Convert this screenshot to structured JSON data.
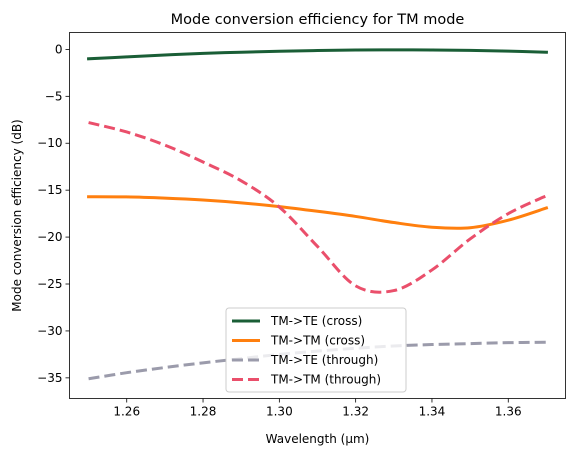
{
  "chart_data": {
    "type": "line",
    "title": "Mode conversion efficiency for TM mode",
    "xlabel": "Wavelength (μm)",
    "ylabel": "Mode conversion efficiency (dB)",
    "xlim": [
      1.245,
      1.375
    ],
    "ylim": [
      -37.2,
      1.8
    ],
    "xticks": [
      1.26,
      1.28,
      1.3,
      1.32,
      1.34,
      1.36
    ],
    "xtick_labels": [
      "1.26",
      "1.28",
      "1.30",
      "1.32",
      "1.34",
      "1.36"
    ],
    "yticks": [
      0,
      -5,
      -10,
      -15,
      -20,
      -25,
      -30,
      -35
    ],
    "ytick_labels": [
      "0",
      "−5",
      "−10",
      "−15",
      "−20",
      "−25",
      "−30",
      "−35"
    ],
    "grid": false,
    "legend_position": "bottom-center",
    "series": [
      {
        "name": "TM->TE (cross)",
        "color": "#1a5e36",
        "dash": "solid",
        "x": [
          1.25,
          1.26,
          1.27,
          1.28,
          1.29,
          1.3,
          1.31,
          1.32,
          1.33,
          1.34,
          1.35,
          1.36,
          1.37
        ],
        "y": [
          -1.0,
          -0.8,
          -0.6,
          -0.42,
          -0.3,
          -0.2,
          -0.12,
          -0.07,
          -0.05,
          -0.06,
          -0.1,
          -0.18,
          -0.3
        ]
      },
      {
        "name": "TM->TM (cross)",
        "color": "#ff7f0e",
        "dash": "solid",
        "x": [
          1.25,
          1.26,
          1.27,
          1.28,
          1.29,
          1.3,
          1.31,
          1.32,
          1.33,
          1.34,
          1.35,
          1.36,
          1.37
        ],
        "y": [
          -15.7,
          -15.72,
          -15.85,
          -16.05,
          -16.35,
          -16.75,
          -17.25,
          -17.8,
          -18.45,
          -18.95,
          -19.0,
          -18.2,
          -16.9
        ]
      },
      {
        "name": "TM->TE (through)",
        "color": "#9b9bab",
        "dash": "dashed",
        "x": [
          1.25,
          1.26,
          1.27,
          1.28,
          1.29,
          1.3,
          1.31,
          1.32,
          1.33,
          1.34,
          1.35,
          1.36,
          1.37
        ],
        "y": [
          -35.1,
          -34.45,
          -33.9,
          -33.4,
          -32.95,
          -32.5,
          -32.15,
          -31.85,
          -31.6,
          -31.45,
          -31.35,
          -31.25,
          -31.2
        ]
      },
      {
        "name": "TM->TM (through)",
        "color": "#ea4f6b",
        "dash": "dashed",
        "x": [
          1.25,
          1.26,
          1.27,
          1.28,
          1.29,
          1.3,
          1.31,
          1.32,
          1.33,
          1.34,
          1.35,
          1.36,
          1.37
        ],
        "y": [
          -7.8,
          -8.8,
          -10.2,
          -12.0,
          -14.0,
          -16.8,
          -21.0,
          -25.2,
          -25.7,
          -23.5,
          -20.2,
          -17.5,
          -15.6
        ]
      }
    ]
  }
}
